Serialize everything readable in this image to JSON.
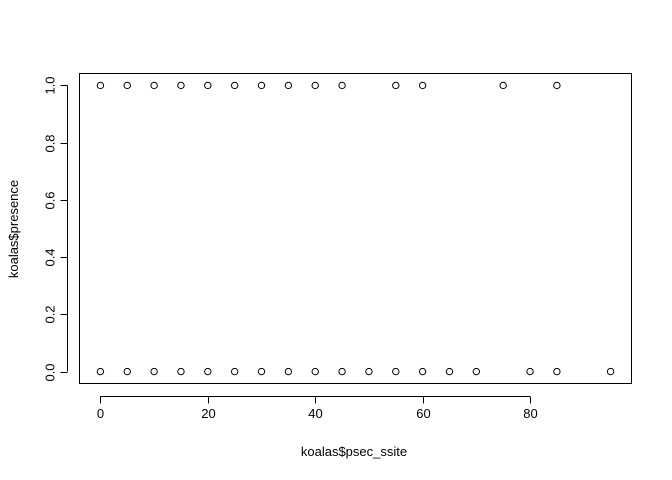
{
  "chart_data": {
    "type": "scatter",
    "xlabel": "koalas$psec_ssite",
    "ylabel": "koalas$presence",
    "xlim": [
      -3.8,
      98.8
    ],
    "ylim": [
      -0.04,
      1.04
    ],
    "x_ticks": [
      0,
      20,
      40,
      60,
      80
    ],
    "x_tick_labels": [
      "0",
      "20",
      "40",
      "60",
      "80"
    ],
    "y_ticks": [
      0.0,
      0.2,
      0.4,
      0.6,
      0.8,
      1.0
    ],
    "y_tick_labels": [
      "0.0",
      "0.2",
      "0.4",
      "0.6",
      "0.8",
      "1.0"
    ],
    "grid": false,
    "marker": "open-circle",
    "points": [
      {
        "x": 0,
        "y": 1
      },
      {
        "x": 5,
        "y": 1
      },
      {
        "x": 10,
        "y": 1
      },
      {
        "x": 15,
        "y": 1
      },
      {
        "x": 20,
        "y": 1
      },
      {
        "x": 25,
        "y": 1
      },
      {
        "x": 30,
        "y": 1
      },
      {
        "x": 35,
        "y": 1
      },
      {
        "x": 40,
        "y": 1
      },
      {
        "x": 45,
        "y": 1
      },
      {
        "x": 55,
        "y": 1
      },
      {
        "x": 60,
        "y": 1
      },
      {
        "x": 75,
        "y": 1
      },
      {
        "x": 85,
        "y": 1
      },
      {
        "x": 0,
        "y": 0
      },
      {
        "x": 5,
        "y": 0
      },
      {
        "x": 10,
        "y": 0
      },
      {
        "x": 15,
        "y": 0
      },
      {
        "x": 20,
        "y": 0
      },
      {
        "x": 25,
        "y": 0
      },
      {
        "x": 30,
        "y": 0
      },
      {
        "x": 35,
        "y": 0
      },
      {
        "x": 40,
        "y": 0
      },
      {
        "x": 45,
        "y": 0
      },
      {
        "x": 50,
        "y": 0
      },
      {
        "x": 55,
        "y": 0
      },
      {
        "x": 60,
        "y": 0
      },
      {
        "x": 65,
        "y": 0
      },
      {
        "x": 70,
        "y": 0
      },
      {
        "x": 80,
        "y": 0
      },
      {
        "x": 85,
        "y": 0
      },
      {
        "x": 95,
        "y": 0
      }
    ]
  }
}
